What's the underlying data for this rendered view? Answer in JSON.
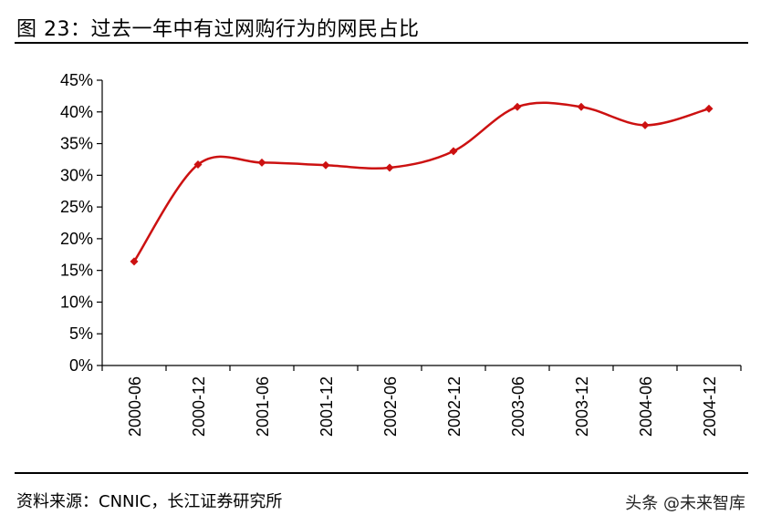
{
  "header": {
    "title": "图 23：过去一年中有过网购行为的网民占比"
  },
  "footer": {
    "source": "资料来源：CNNIC，长江证券研究所",
    "watermark": "头条 @未来智库"
  },
  "chart_data": {
    "type": "line",
    "title": "",
    "xlabel": "",
    "ylabel": "",
    "categories": [
      "2000-06",
      "2000-12",
      "2001-06",
      "2001-12",
      "2002-06",
      "2002-12",
      "2003-06",
      "2003-12",
      "2004-06",
      "2004-12"
    ],
    "series": [
      {
        "values": [
          16.4,
          31.7,
          32.0,
          31.6,
          31.2,
          33.8,
          40.8,
          40.8,
          37.9,
          40.5
        ]
      }
    ],
    "ylim": [
      0,
      45
    ],
    "yticks": [
      0,
      5,
      10,
      15,
      20,
      25,
      30,
      35,
      40,
      45
    ],
    "ytick_labels": [
      "0%",
      "5%",
      "10%",
      "15%",
      "20%",
      "25%",
      "30%",
      "35%",
      "40%",
      "45%"
    ],
    "grid": false,
    "smooth": true,
    "line_color": "#cc1111"
  }
}
